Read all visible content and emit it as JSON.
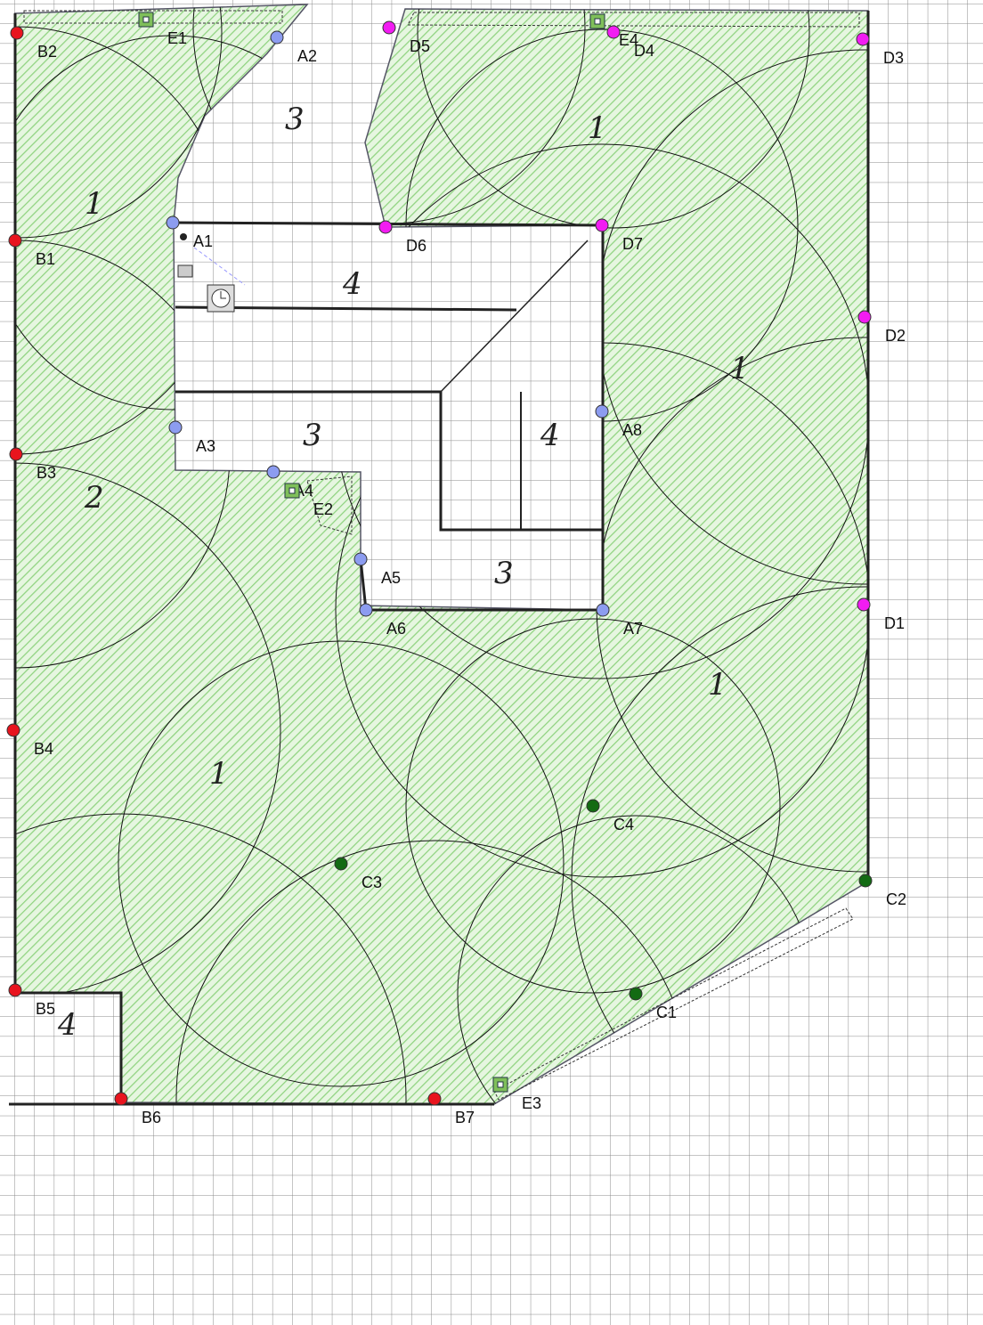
{
  "sprinklers": [
    "A1",
    "A2",
    "A3",
    "A4",
    "A5",
    "A6",
    "A7",
    "A8",
    "B1",
    "B2",
    "B3",
    "B4",
    "B5",
    "B6",
    "B7",
    "C1",
    "C2",
    "C3",
    "C4",
    "D1",
    "D2",
    "D3",
    "D4",
    "D5",
    "D6",
    "D7"
  ],
  "valves": [
    "E1",
    "E2",
    "E3",
    "E4"
  ],
  "zone_marks": [
    "3",
    "4",
    "3",
    "4",
    "3",
    "1",
    "2",
    "1",
    "1",
    "1",
    "1",
    "4"
  ]
}
